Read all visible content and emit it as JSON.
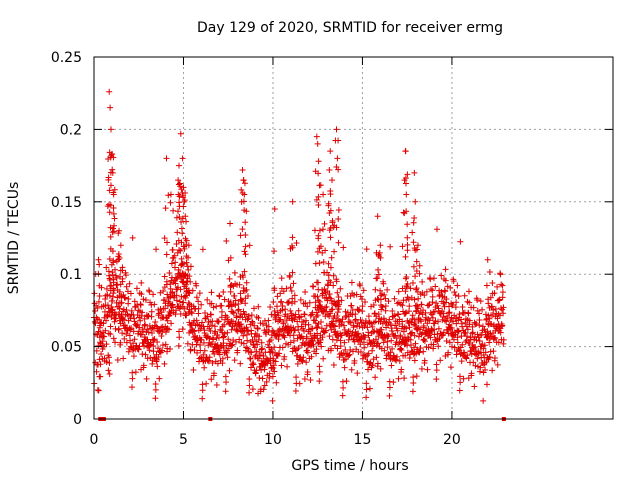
{
  "chart_data": {
    "type": "scatter",
    "title": "Day 129 of 2020, SRMTID for receiver ermg",
    "xlabel": "GPS time / hours",
    "ylabel": "SRMTID / TECUs",
    "xlim": [
      0,
      29
    ],
    "ylim": [
      0,
      0.25
    ],
    "x_ticks": [
      0,
      5,
      10,
      15,
      20
    ],
    "x_tick_labels": [
      "0",
      "5",
      "10",
      "15",
      "20"
    ],
    "y_ticks": [
      0,
      0.05,
      0.1,
      0.15,
      0.2,
      0.25
    ],
    "y_tick_labels": [
      "0",
      "0.05",
      "0.1",
      "0.15",
      "0.2",
      "0.25"
    ],
    "grid": true,
    "marker": "plus",
    "color": "#e00000",
    "series": [
      {
        "name": "SRMTID",
        "trend": [
          [
            0.0,
            0.055
          ],
          [
            0.5,
            0.06
          ],
          [
            1.0,
            0.075
          ],
          [
            1.5,
            0.07
          ],
          [
            2.0,
            0.058
          ],
          [
            2.5,
            0.058
          ],
          [
            3.0,
            0.052
          ],
          [
            3.5,
            0.05
          ],
          [
            4.0,
            0.062
          ],
          [
            4.5,
            0.085
          ],
          [
            5.0,
            0.088
          ],
          [
            5.5,
            0.06
          ],
          [
            6.0,
            0.05
          ],
          [
            6.5,
            0.05
          ],
          [
            7.0,
            0.048
          ],
          [
            7.5,
            0.058
          ],
          [
            8.0,
            0.065
          ],
          [
            8.5,
            0.06
          ],
          [
            9.0,
            0.042
          ],
          [
            9.5,
            0.036
          ],
          [
            10.0,
            0.045
          ],
          [
            10.5,
            0.06
          ],
          [
            11.0,
            0.062
          ],
          [
            11.5,
            0.05
          ],
          [
            12.0,
            0.05
          ],
          [
            12.5,
            0.06
          ],
          [
            13.0,
            0.072
          ],
          [
            13.5,
            0.06
          ],
          [
            14.0,
            0.05
          ],
          [
            14.5,
            0.058
          ],
          [
            15.0,
            0.055
          ],
          [
            15.5,
            0.045
          ],
          [
            16.0,
            0.06
          ],
          [
            16.5,
            0.052
          ],
          [
            17.0,
            0.05
          ],
          [
            17.5,
            0.055
          ],
          [
            18.0,
            0.055
          ],
          [
            18.5,
            0.058
          ],
          [
            19.0,
            0.062
          ],
          [
            19.5,
            0.068
          ],
          [
            20.0,
            0.06
          ],
          [
            20.5,
            0.055
          ],
          [
            21.0,
            0.05
          ],
          [
            21.5,
            0.045
          ],
          [
            22.0,
            0.05
          ],
          [
            22.5,
            0.062
          ],
          [
            22.9,
            0.065
          ]
        ],
        "spikes": [
          [
            0.25,
            0.11
          ],
          [
            0.85,
            0.226
          ],
          [
            0.9,
            0.215
          ],
          [
            0.95,
            0.2
          ],
          [
            1.0,
            0.183
          ],
          [
            1.05,
            0.17
          ],
          [
            1.1,
            0.155
          ],
          [
            1.4,
            0.13
          ],
          [
            1.5,
            0.12
          ],
          [
            4.05,
            0.18
          ],
          [
            4.3,
            0.155
          ],
          [
            4.7,
            0.165
          ],
          [
            4.75,
            0.175
          ],
          [
            4.85,
            0.197
          ],
          [
            4.95,
            0.18
          ],
          [
            5.0,
            0.16
          ],
          [
            5.1,
            0.14
          ],
          [
            5.3,
            0.12
          ],
          [
            7.6,
            0.135
          ],
          [
            8.3,
            0.172
          ],
          [
            8.35,
            0.165
          ],
          [
            8.4,
            0.155
          ],
          [
            10.1,
            0.145
          ],
          [
            11.1,
            0.15
          ],
          [
            12.45,
            0.195
          ],
          [
            12.5,
            0.19
          ],
          [
            12.55,
            0.178
          ],
          [
            12.8,
            0.155
          ],
          [
            13.15,
            0.172
          ],
          [
            13.2,
            0.185
          ],
          [
            13.3,
            0.165
          ],
          [
            13.55,
            0.2
          ],
          [
            13.6,
            0.18
          ],
          [
            15.85,
            0.14
          ],
          [
            16.0,
            0.12
          ],
          [
            17.35,
            0.165
          ],
          [
            17.4,
            0.185
          ],
          [
            17.45,
            0.155
          ],
          [
            17.9,
            0.17
          ],
          [
            17.95,
            0.15
          ],
          [
            18.1,
            0.12
          ],
          [
            22.0,
            0.11
          ]
        ],
        "zero_values": [
          [
            0.35,
            0.0
          ],
          [
            0.55,
            0.0
          ],
          [
            6.5,
            0.0
          ],
          [
            22.9,
            0.0
          ]
        ]
      }
    ]
  }
}
